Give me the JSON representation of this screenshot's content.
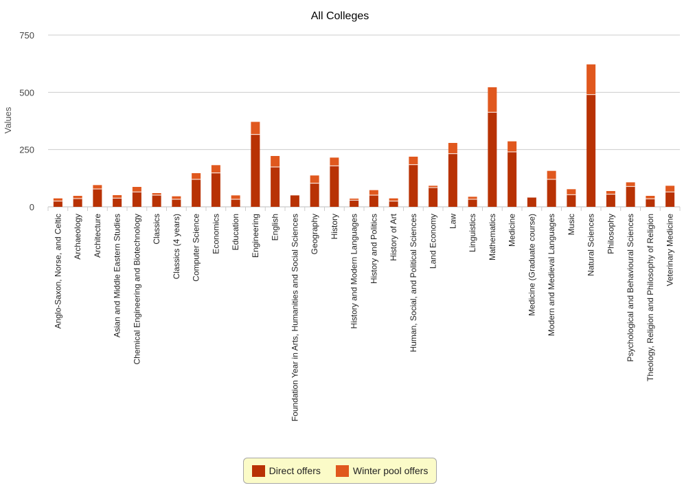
{
  "chart_data": {
    "type": "bar",
    "stacked": true,
    "title": "All Colleges",
    "ylabel": "Values",
    "xlabel": "",
    "ylim": [
      0,
      750
    ],
    "yticks": [
      0,
      250,
      500,
      750
    ],
    "grid": true,
    "legend_position": "bottom",
    "categories": [
      "Anglo-Saxon, Norse, and Celtic",
      "Archaeology",
      "Architecture",
      "Asian and Middle Eastern Studies",
      "Chemical Engineering and Biotechnology",
      "Classics",
      "Classics (4 years)",
      "Computer Science",
      "Economics",
      "Education",
      "Engineering",
      "English",
      "Foundation Year in Arts, Humanities and Social Sciences",
      "Geography",
      "History",
      "History and Modern Languages",
      "History and Politics",
      "History of Art",
      "Human, Social, and Political Sciences",
      "Land Economy",
      "Law",
      "Linguistics",
      "Mathematics",
      "Medicine",
      "Medicine (Graduate course)",
      "Modern and Medieval Languages",
      "Music",
      "Natural Sciences",
      "Philosophy",
      "Psychological and Behavioural Sciences",
      "Theology, Religion and Philosophy of Religion",
      "Veterinary Medicine"
    ],
    "series": [
      {
        "name": "Direct offers",
        "color": "#b83204",
        "values": [
          25,
          36,
          78,
          38,
          65,
          51,
          33,
          120,
          148,
          33,
          316,
          174,
          50,
          103,
          179,
          29,
          51,
          25,
          184,
          84,
          232,
          33,
          413,
          240,
          42,
          120,
          53,
          490,
          55,
          89,
          35,
          65
        ]
      },
      {
        "name": "Winter pool offers",
        "color": "#e0581e",
        "values": [
          12,
          12,
          17,
          13,
          22,
          9,
          13,
          27,
          34,
          17,
          55,
          48,
          0,
          34,
          36,
          7,
          22,
          12,
          35,
          8,
          47,
          11,
          109,
          46,
          1,
          37,
          24,
          132,
          14,
          18,
          13,
          27
        ]
      }
    ]
  },
  "legend": {
    "items": [
      {
        "label": "Direct offers",
        "color": "#b83204"
      },
      {
        "label": "Winter pool offers",
        "color": "#e0581e"
      }
    ]
  }
}
